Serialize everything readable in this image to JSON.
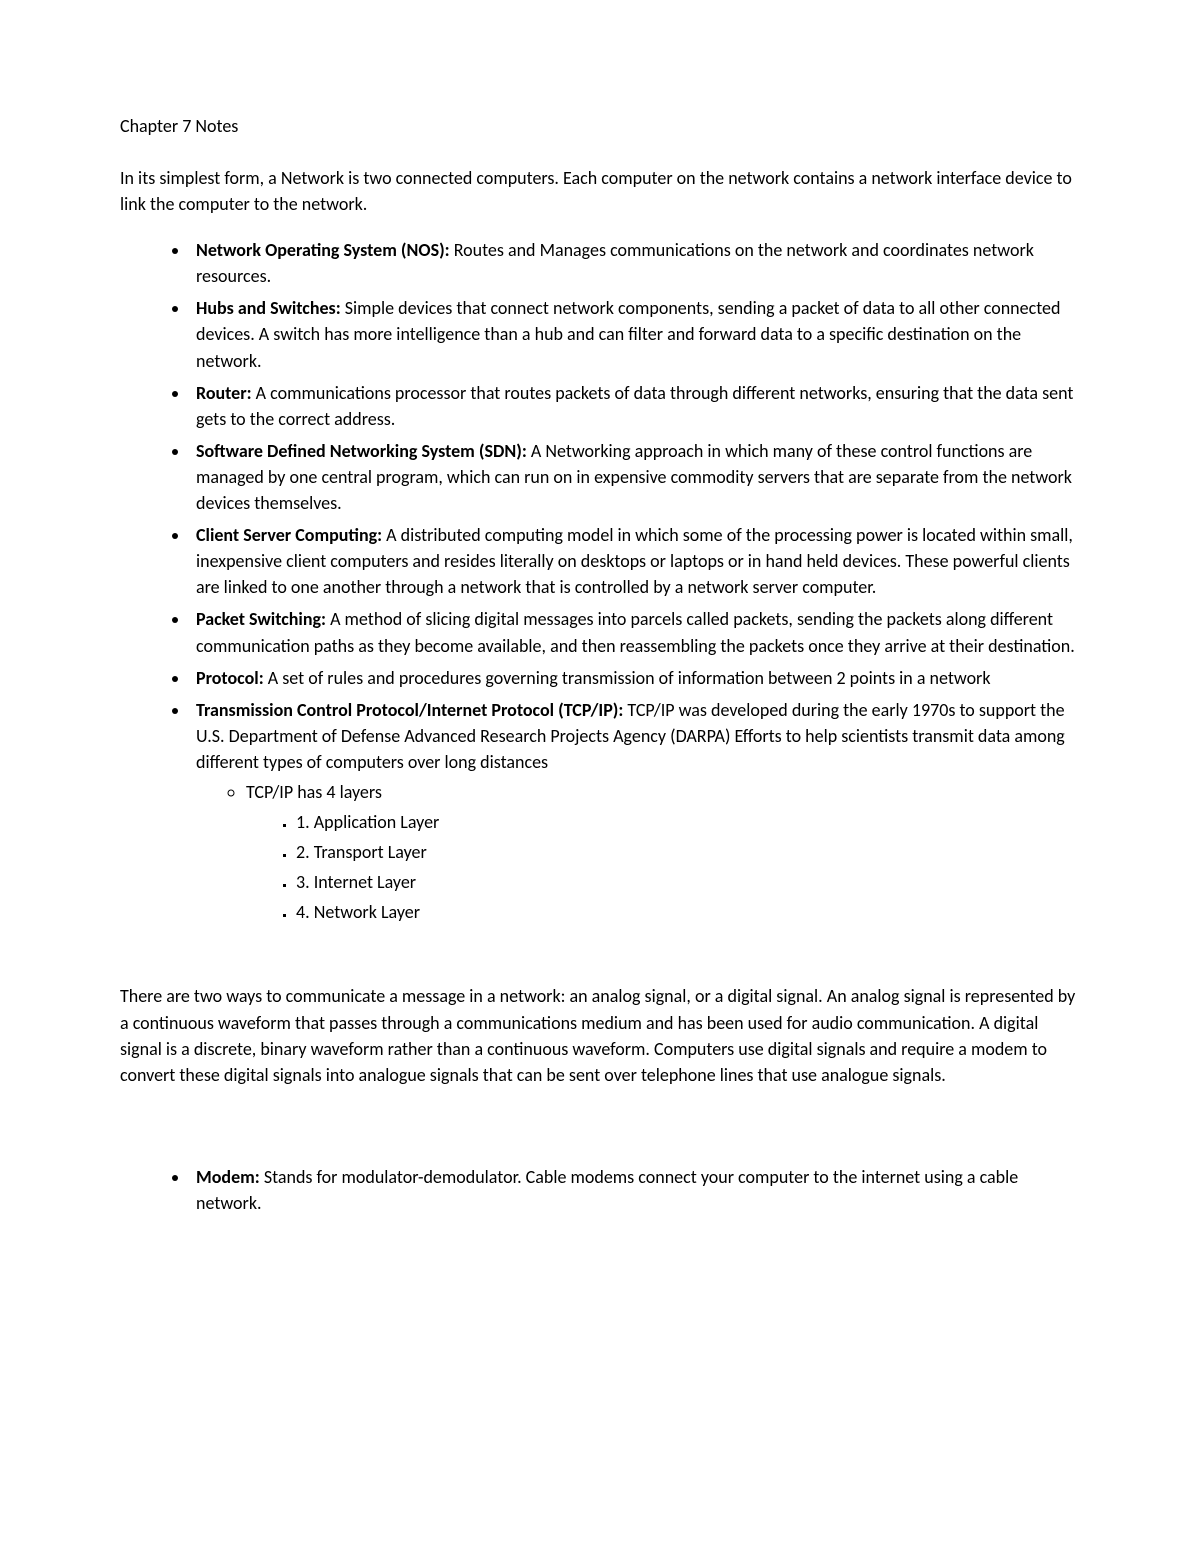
{
  "title": "Chapter 7 Notes",
  "intro": "In its simplest form, a Network is two connected computers. Each computer on the network contains a network interface device to link the computer to the network.",
  "definitions": [
    {
      "term": "Network Operating System (NOS):",
      "def": " Routes and Manages communications on the network and coordinates network resources."
    },
    {
      "term": "Hubs and Switches:",
      "def": " Simple devices that connect network components, sending a packet of data to all other connected devices. A switch has more intelligence than a hub and can filter and forward data to a specific destination on the network."
    },
    {
      "term": "Router:",
      "def": " A communications processor that routes packets of data through different networks, ensuring that the data sent gets to the correct address."
    },
    {
      "term": "Software Defined Networking System (SDN):",
      "def": " A Networking approach in which many of these control functions are managed by one central program, which can run on in expensive commodity servers that are separate from the network devices themselves."
    },
    {
      "term": "Client Server Computing:",
      "def": " A distributed computing model in which some of the processing power is located within small, inexpensive client computers and resides literally on desktops or laptops or in hand held devices. These powerful clients are linked to one another through a network that is controlled by a network server computer."
    },
    {
      "term": "Packet Switching:",
      "def": " A method of slicing digital messages into parcels called packets, sending the packets along different communication paths as they become available, and then reassembling the packets once they arrive at their destination."
    },
    {
      "term": "Protocol:",
      "def": " A set of rules and procedures governing transmission of information between 2 points in a network"
    },
    {
      "term": "Transmission Control Protocol/Internet Protocol (TCP/IP):",
      "def": " TCP/IP was developed during the early 1970s to support the U.S. Department of Defense Advanced Research Projects Agency (DARPA) Efforts to help scientists transmit data among different types of computers over long distances"
    }
  ],
  "tcpip_sub": "TCP/IP has 4 layers",
  "tcpip_layers": [
    "1. Application Layer",
    "2. Transport Layer",
    "3. Internet Layer",
    "4. Network Layer"
  ],
  "para2": "There are two ways to communicate a message in a network: an analog signal, or a digital signal. An analog signal is represented by a continuous waveform that passes through a communications medium and has been used for audio communication. A digital signal is a discrete, binary waveform rather than a continuous waveform. Computers use digital signals and require a modem to convert these digital signals into analogue signals that can be sent over telephone lines that use analogue signals.",
  "modem": {
    "term": "Modem:",
    "def": " Stands for modulator-demodulator. Cable modems connect your computer to the internet using a cable network."
  }
}
